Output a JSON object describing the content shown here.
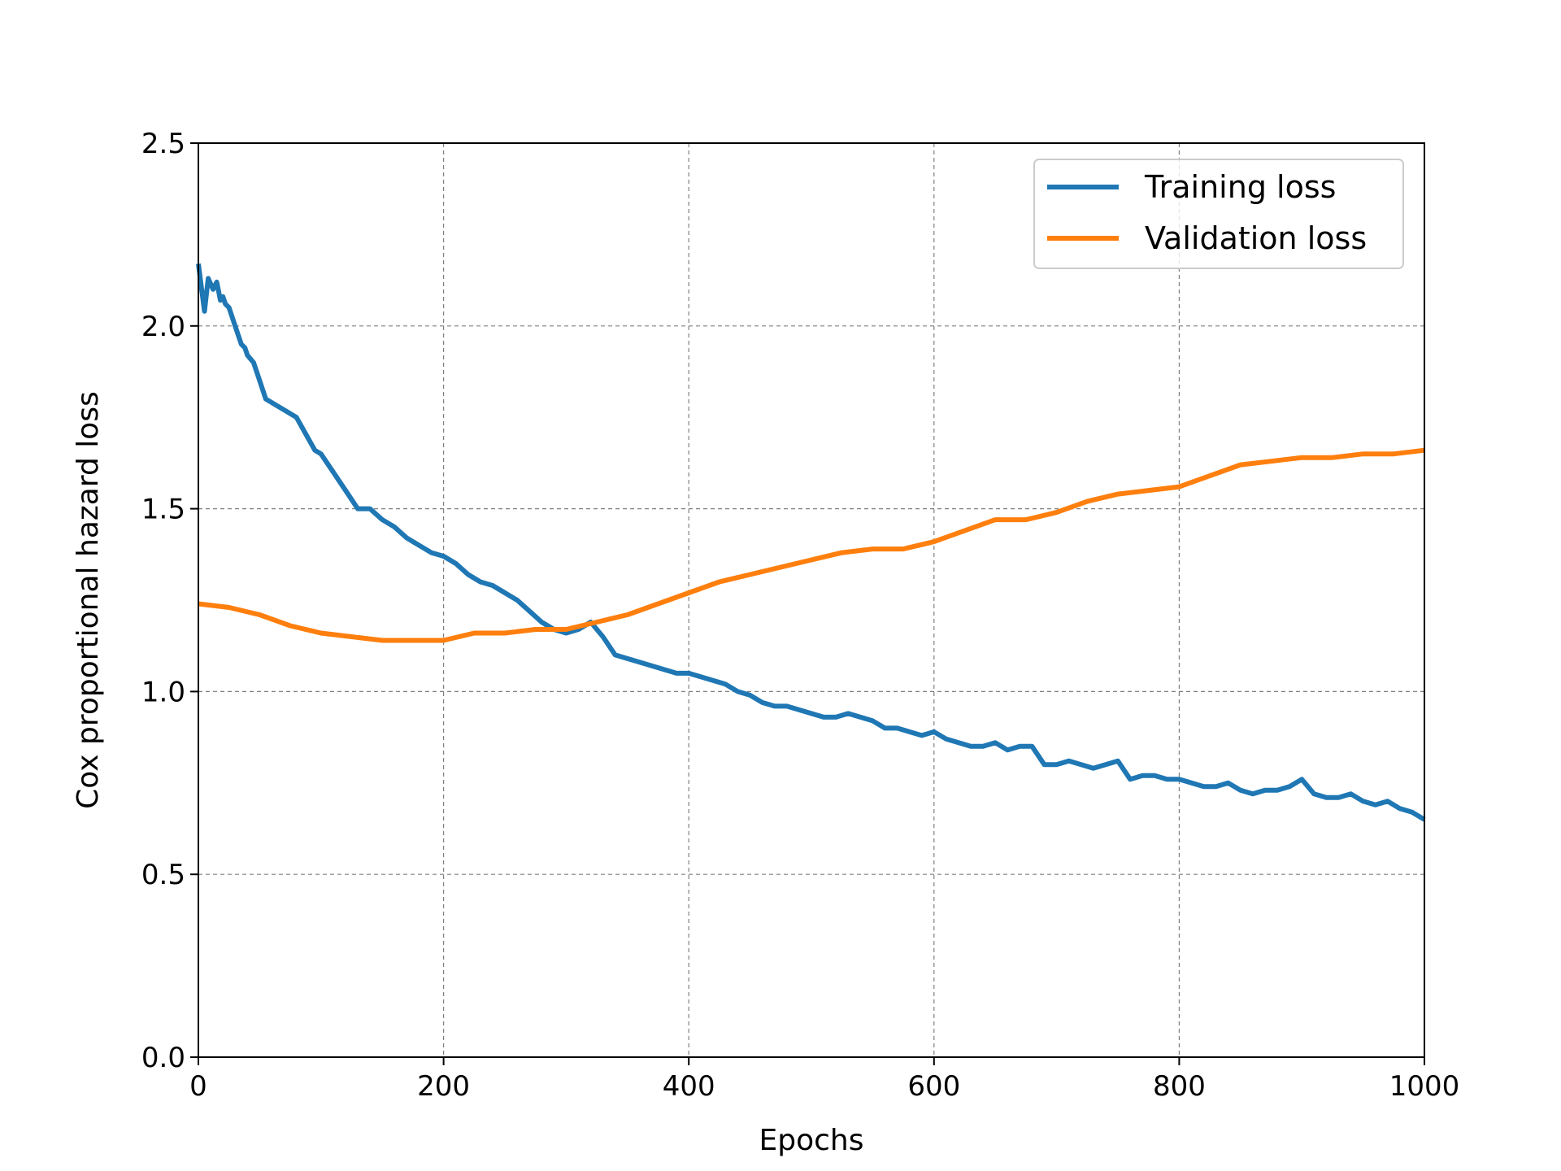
{
  "chart_data": {
    "type": "line",
    "xlabel": "Epochs",
    "ylabel": "Cox proportional hazard loss",
    "xlim": [
      0,
      1000
    ],
    "ylim": [
      0,
      2.5
    ],
    "xticks": [
      0,
      200,
      400,
      600,
      800,
      1000
    ],
    "yticks": [
      0.0,
      0.5,
      1.0,
      1.5,
      2.0,
      2.5
    ],
    "xtick_labels": [
      "0",
      "200",
      "400",
      "600",
      "800",
      "1000"
    ],
    "ytick_labels": [
      "0.0",
      "0.5",
      "1.0",
      "1.5",
      "2.0",
      "2.5"
    ],
    "grid": true,
    "grid_style": "dashed",
    "legend_position": "top-right",
    "series": [
      {
        "name": "Training loss",
        "color": "#1f77b4",
        "x": [
          0,
          5,
          8,
          12,
          15,
          18,
          20,
          22,
          25,
          30,
          35,
          38,
          40,
          45,
          50,
          55,
          60,
          65,
          70,
          80,
          90,
          95,
          100,
          110,
          120,
          130,
          140,
          150,
          160,
          170,
          180,
          190,
          200,
          210,
          220,
          230,
          240,
          250,
          260,
          270,
          280,
          290,
          300,
          310,
          320,
          330,
          340,
          350,
          360,
          370,
          380,
          390,
          400,
          410,
          420,
          430,
          440,
          450,
          460,
          470,
          480,
          490,
          500,
          510,
          520,
          530,
          540,
          550,
          560,
          570,
          580,
          590,
          600,
          610,
          620,
          630,
          640,
          650,
          660,
          670,
          680,
          690,
          700,
          710,
          720,
          730,
          740,
          750,
          760,
          770,
          780,
          790,
          800,
          810,
          820,
          830,
          840,
          850,
          860,
          870,
          880,
          890,
          900,
          910,
          920,
          930,
          940,
          950,
          960,
          970,
          980,
          990,
          1000
        ],
        "values": [
          2.17,
          2.04,
          2.13,
          2.1,
          2.12,
          2.07,
          2.08,
          2.06,
          2.05,
          2.0,
          1.95,
          1.94,
          1.92,
          1.9,
          1.85,
          1.8,
          1.79,
          1.78,
          1.77,
          1.75,
          1.69,
          1.66,
          1.65,
          1.6,
          1.55,
          1.5,
          1.5,
          1.47,
          1.45,
          1.42,
          1.4,
          1.38,
          1.37,
          1.35,
          1.32,
          1.3,
          1.29,
          1.27,
          1.25,
          1.22,
          1.19,
          1.17,
          1.16,
          1.17,
          1.19,
          1.15,
          1.1,
          1.09,
          1.08,
          1.07,
          1.06,
          1.05,
          1.05,
          1.04,
          1.03,
          1.02,
          1.0,
          0.99,
          0.97,
          0.96,
          0.96,
          0.95,
          0.94,
          0.93,
          0.93,
          0.94,
          0.93,
          0.92,
          0.9,
          0.9,
          0.89,
          0.88,
          0.89,
          0.87,
          0.86,
          0.85,
          0.85,
          0.86,
          0.84,
          0.85,
          0.85,
          0.8,
          0.8,
          0.81,
          0.8,
          0.79,
          0.8,
          0.81,
          0.76,
          0.77,
          0.77,
          0.76,
          0.76,
          0.75,
          0.74,
          0.74,
          0.75,
          0.73,
          0.72,
          0.73,
          0.73,
          0.74,
          0.76,
          0.72,
          0.71,
          0.71,
          0.72,
          0.7,
          0.69,
          0.7,
          0.68,
          0.67,
          0.65
        ]
      },
      {
        "name": "Validation loss",
        "color": "#ff7f0e",
        "x": [
          0,
          25,
          50,
          75,
          100,
          125,
          150,
          175,
          200,
          225,
          250,
          275,
          300,
          325,
          350,
          375,
          400,
          425,
          450,
          475,
          500,
          525,
          550,
          575,
          600,
          625,
          650,
          675,
          700,
          725,
          750,
          775,
          800,
          825,
          850,
          875,
          900,
          925,
          950,
          975,
          1000
        ],
        "values": [
          1.24,
          1.23,
          1.21,
          1.18,
          1.16,
          1.15,
          1.14,
          1.14,
          1.14,
          1.16,
          1.16,
          1.17,
          1.17,
          1.19,
          1.21,
          1.24,
          1.27,
          1.3,
          1.32,
          1.34,
          1.36,
          1.38,
          1.39,
          1.39,
          1.41,
          1.44,
          1.47,
          1.47,
          1.49,
          1.52,
          1.54,
          1.55,
          1.56,
          1.59,
          1.62,
          1.63,
          1.64,
          1.64,
          1.65,
          1.65,
          1.66
        ]
      }
    ]
  }
}
